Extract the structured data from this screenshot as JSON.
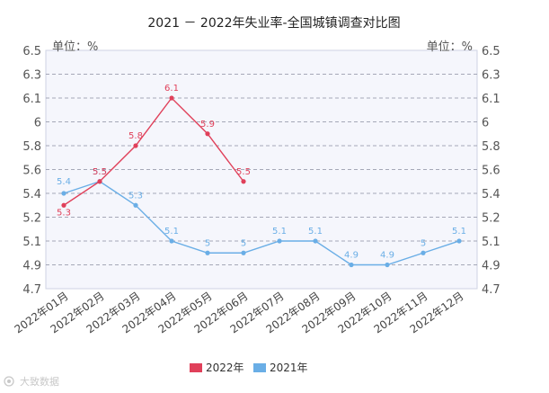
{
  "chart_data": {
    "type": "line",
    "title": "2021 － 2022年失业率-全国城镇调查对比图",
    "unit_left": "单位：%",
    "unit_right": "单位：%",
    "categories": [
      "2022年01月",
      "2022年02月",
      "2022年03月",
      "2022年04月",
      "2022年05月",
      "2022年06月",
      "2022年07月",
      "2022年08月",
      "2022年09月",
      "2022年10月",
      "2022年11月",
      "2022年12月"
    ],
    "yticks": [
      "4.7",
      "4.9",
      "5.1",
      "5.2",
      "5.4",
      "5.6",
      "5.8",
      "6",
      "6.1",
      "6.3",
      "6.5"
    ],
    "ylim": [
      4.7,
      6.5
    ],
    "grid": true,
    "legend_position": "bottom",
    "series": [
      {
        "name": "2022年",
        "color": "#e0405a",
        "values": [
          5.3,
          5.5,
          5.8,
          6.1,
          5.9,
          5.5,
          null,
          null,
          null,
          null,
          null,
          null
        ],
        "labels": [
          "5.3",
          "5.5",
          "5.8",
          "6.1",
          "5.9",
          "5.5",
          "",
          "",
          "",
          "",
          "",
          ""
        ]
      },
      {
        "name": "2021年",
        "color": "#6aaee6",
        "values": [
          5.4,
          5.5,
          5.3,
          5.1,
          5.0,
          5.0,
          5.1,
          5.1,
          4.9,
          4.9,
          5.0,
          5.1
        ],
        "labels": [
          "5.4",
          "5.5",
          "5.3",
          "5.1",
          "5",
          "5",
          "5.1",
          "5.1",
          "4.9",
          "4.9",
          "5",
          "5.1"
        ]
      }
    ]
  },
  "watermark": "大致数据"
}
